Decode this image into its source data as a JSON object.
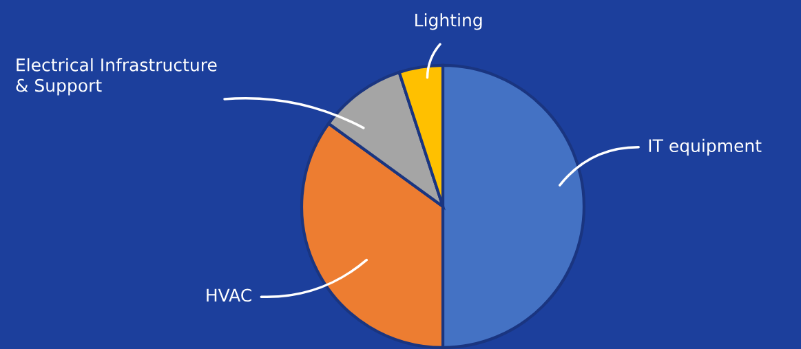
{
  "chart_data": {
    "type": "pie",
    "categories": [
      "IT equipment",
      "HVAC",
      "Electrical Infrastructure\n& Support",
      "Lighting"
    ],
    "values": [
      50,
      35,
      10,
      5
    ],
    "colors": [
      "#4472c4",
      "#ed7d31",
      "#a5a5a5",
      "#ffc000"
    ],
    "legend": false
  }
}
